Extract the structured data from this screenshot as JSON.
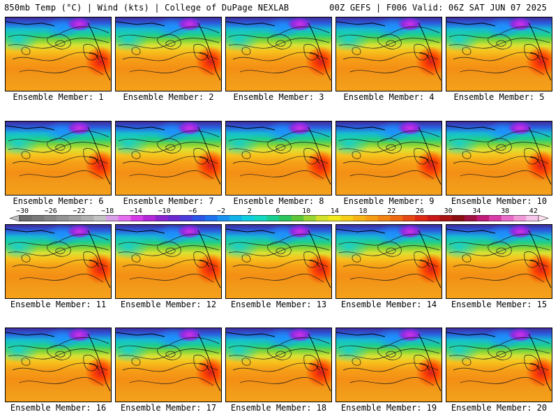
{
  "header": {
    "left_title": "850mb Temp (°C) | Wind (kts) | College of DuPage NEXLAB",
    "right_title": "00Z GEFS | F006 Valid: 06Z SAT JUN 07 2025"
  },
  "members": [
    {
      "label": "Ensemble Member: 1"
    },
    {
      "label": "Ensemble Member: 2"
    },
    {
      "label": "Ensemble Member: 3"
    },
    {
      "label": "Ensemble Member: 4"
    },
    {
      "label": "Ensemble Member: 5"
    },
    {
      "label": "Ensemble Member: 6"
    },
    {
      "label": "Ensemble Member: 7"
    },
    {
      "label": "Ensemble Member: 8"
    },
    {
      "label": "Ensemble Member: 9"
    },
    {
      "label": "Ensemble Member: 10"
    },
    {
      "label": "Ensemble Member: 11"
    },
    {
      "label": "Ensemble Member: 12"
    },
    {
      "label": "Ensemble Member: 13"
    },
    {
      "label": "Ensemble Member: 14"
    },
    {
      "label": "Ensemble Member: 15"
    },
    {
      "label": "Ensemble Member: 16"
    },
    {
      "label": "Ensemble Member: 17"
    },
    {
      "label": "Ensemble Member: 18"
    },
    {
      "label": "Ensemble Member: 19"
    },
    {
      "label": "Ensemble Member: 20"
    }
  ],
  "colorbar": {
    "labels": [
      "−30",
      "−26",
      "−22",
      "−18",
      "−14",
      "−10",
      "−6",
      "−2",
      "2",
      "6",
      "10",
      "14",
      "18",
      "22",
      "26",
      "30",
      "34",
      "38",
      "42"
    ],
    "colors": [
      "#6e6e6e",
      "#7a7a7a",
      "#878787",
      "#949494",
      "#a1a1a1",
      "#b0b0b0",
      "#c3c3c3",
      "#d8a0e8",
      "#e46df0",
      "#d43be6",
      "#b328d8",
      "#8a24cf",
      "#6a2ad0",
      "#4a3ddc",
      "#2d55e6",
      "#1e72ee",
      "#1a93f0",
      "#12b3ea",
      "#10cde0",
      "#14d8c0",
      "#18cf90",
      "#2cc45c",
      "#5fc63a",
      "#9bd533",
      "#d3e02c",
      "#f2e81f",
      "#f7cf1a",
      "#f7b416",
      "#f59d14",
      "#f28413",
      "#ee6a12",
      "#e64a12",
      "#dc2a14",
      "#c81818",
      "#a81414",
      "#8a0e10",
      "#a01040",
      "#c01a7a",
      "#d83ca8",
      "#e66cc8",
      "#f09ad8",
      "#f6c6ea"
    ],
    "left_arrow_color": "#c0c0c0",
    "right_arrow_color": "#ffe0f0"
  }
}
